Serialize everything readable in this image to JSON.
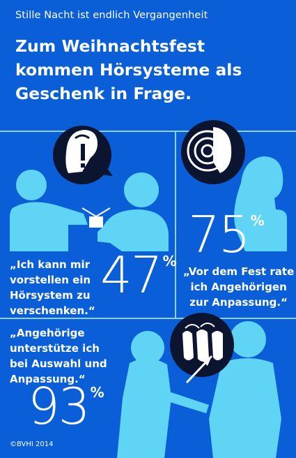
{
  "header": {
    "pretitle": "Stille Nacht ist endlich Vergangenheit",
    "headline_lines": [
      "Zum Weihnachtsfest",
      "kommen Hörsysteme als",
      "Geschenk in Frage."
    ]
  },
  "stats": [
    {
      "value": "47",
      "unit": "%",
      "quote_lines": [
        "„Ich kann mir",
        "vorstellen ein",
        "Hörsystem zu",
        "verschenken.“"
      ]
    },
    {
      "value": "75",
      "unit": "%",
      "quote_lines": [
        "„Vor dem Fest rate",
        "ich Angehörigen",
        "zur Anpassung.“"
      ]
    },
    {
      "value": "93",
      "unit": "%",
      "quote_lines": [
        "„Angehörige",
        "unterstütze ich",
        "bei Auswahl und",
        "Anpassung.“"
      ]
    }
  ],
  "icons": {
    "speech_bubble": "exclamation-speech-bubble-icon",
    "hearing_aid": "hearing-aid-sound-waves-icon",
    "hearing_aids_set": "hearing-aids-selection-icon"
  },
  "footer": {
    "copyright": "©BVHI 2014"
  },
  "colors": {
    "background": "#0a5fd8",
    "figures": "#5fd4f4",
    "rules": "#8ed3ff",
    "icon_dark": "#0b1530",
    "text": "#ffffff"
  }
}
